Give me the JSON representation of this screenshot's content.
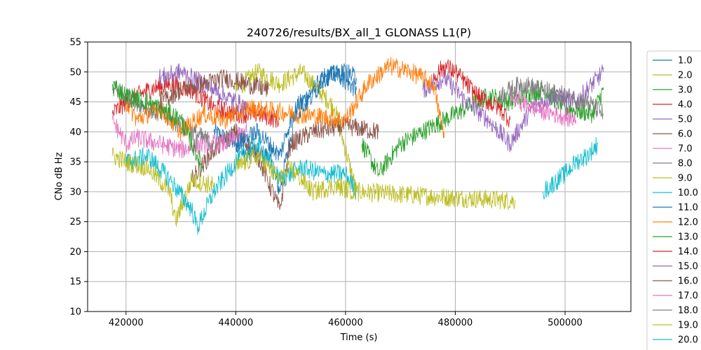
{
  "chart_data": {
    "type": "line",
    "title": "240726/results/BX_all_1 GLONASS L1(P)",
    "xlabel": "Time (s)",
    "ylabel": "CNo dB Hz",
    "xlim": [
      413000,
      512000
    ],
    "ylim": [
      10,
      55
    ],
    "xticks": [
      420000,
      440000,
      460000,
      480000,
      500000
    ],
    "xtick_labels": [
      "420000",
      "440000",
      "460000",
      "480000",
      "500000"
    ],
    "yticks": [
      10,
      15,
      20,
      25,
      30,
      35,
      40,
      45,
      50,
      55
    ],
    "ytick_labels": [
      "10",
      "15",
      "20",
      "25",
      "30",
      "35",
      "40",
      "45",
      "50",
      "55"
    ],
    "grid": true,
    "legend_position": "right, outside plot (clipped)",
    "series": [
      {
        "name": "1.0",
        "color": "#1f77b4",
        "x": [
          436000,
          442000,
          446000,
          448000,
          451000,
          455000,
          458000,
          462000
        ],
        "y": [
          40,
          37,
          36,
          30,
          44,
          48,
          50,
          47
        ]
      },
      {
        "name": "2.0",
        "color": "#bcbd22",
        "x": [
          440000,
          444000,
          448000,
          452000,
          458000,
          462000,
          480000,
          491000
        ],
        "y": [
          47,
          50,
          48,
          50,
          44,
          30,
          29,
          28.5
        ]
      },
      {
        "name": "3.0",
        "color": "#2ca02c",
        "x": [
          463000,
          466000,
          470000,
          474000,
          478000,
          482000,
          486000,
          490000,
          496000,
          500000,
          505000,
          507000
        ],
        "y": [
          38,
          33,
          38,
          40,
          42,
          44,
          46,
          45,
          47,
          44,
          43,
          47
        ]
      },
      {
        "name": "4.0",
        "color": "#d62728",
        "x": [
          417500,
          420000,
          424000,
          428000,
          432000,
          436000,
          440000,
          444000,
          448000
        ],
        "y": [
          43,
          45,
          47,
          48,
          47,
          44,
          43,
          43,
          42
        ]
      },
      {
        "name": "5.0",
        "color": "#9467bd",
        "x": [
          474000,
          478000,
          482000,
          486000,
          490000,
          494000,
          498000,
          502000,
          506000,
          507000
        ],
        "y": [
          47,
          49,
          45,
          42,
          38,
          44,
          46,
          45,
          49,
          50
        ]
      },
      {
        "name": "6.0",
        "color": "#8c564b",
        "x": [
          432000,
          436000,
          440000,
          444000,
          448000,
          450000,
          454000,
          460000,
          466000
        ],
        "y": [
          32,
          37,
          40,
          36,
          27,
          38,
          40,
          41,
          40
        ]
      },
      {
        "name": "7.0",
        "color": "#e377c2",
        "x": [
          417500,
          420000,
          422000,
          426000,
          430000,
          434000,
          438000,
          442000
        ],
        "y": [
          42,
          38,
          39,
          38,
          37,
          38,
          38,
          40
        ]
      },
      {
        "name": "8.0",
        "color": "#7f7f7f",
        "x": [
          417500,
          420000,
          424000,
          428000,
          432000,
          436000
        ],
        "y": [
          47,
          46,
          44,
          42,
          40,
          38
        ]
      },
      {
        "name": "9.0",
        "color": "#bcbd22",
        "x": [
          417500,
          420000,
          424000,
          428000,
          429000,
          432000,
          436000
        ],
        "y": [
          36,
          35,
          34,
          30,
          25,
          32,
          31
        ]
      },
      {
        "name": "10.0",
        "color": "#17becf",
        "x": [
          420000,
          424000,
          428000,
          432000,
          433000,
          436000,
          440000,
          444000,
          448000,
          452000,
          456000,
          460000,
          462000
        ],
        "y": [
          35,
          36,
          32,
          27,
          24,
          30,
          35,
          38,
          32,
          34,
          33,
          33,
          30
        ]
      },
      {
        "name": "11.0",
        "color": "#1f77b4",
        "x": [
          440000,
          444000,
          448000,
          450000,
          454000,
          456000,
          460000,
          462000
        ],
        "y": [
          38,
          40,
          36,
          42,
          46,
          49,
          50,
          49
        ]
      },
      {
        "name": "12.0",
        "color": "#ff7f0e",
        "x": [
          420000,
          422000,
          426000,
          430000,
          434000,
          438000,
          442000,
          460000,
          464000,
          468000,
          472000,
          476000,
          478000
        ],
        "y": [
          45,
          42,
          44,
          40,
          43,
          42,
          44,
          42,
          48,
          51,
          50,
          48,
          39
        ]
      },
      {
        "name": "13.0",
        "color": "#2ca02c",
        "x": [
          417500,
          420000,
          424000,
          426000,
          430000,
          434000
        ],
        "y": [
          48,
          46,
          45,
          44,
          42,
          34
        ]
      },
      {
        "name": "14.0",
        "color": "#d62728",
        "x": [
          476000,
          478000,
          480000,
          484000,
          488000,
          490000
        ],
        "y": [
          49,
          51,
          50,
          46,
          44,
          42
        ]
      },
      {
        "name": "15.0",
        "color": "#9467bd",
        "x": [
          426000,
          430000,
          434000,
          438000,
          442000
        ],
        "y": [
          49,
          50,
          48,
          46,
          44
        ]
      },
      {
        "name": "16.0",
        "color": "#8c564b",
        "x": [
          426000,
          430000,
          434000,
          438000,
          442000,
          446000
        ],
        "y": [
          45,
          47,
          48,
          49,
          48,
          47
        ]
      },
      {
        "name": "17.0",
        "color": "#e377c2",
        "x": [
          490000,
          494000,
          498000,
          502000
        ],
        "y": [
          46,
          44,
          43,
          42
        ]
      },
      {
        "name": "18.0",
        "color": "#7f7f7f",
        "x": [
          488000,
          492000,
          496000,
          500000,
          504000,
          507000
        ],
        "y": [
          46,
          48,
          47,
          46,
          45,
          43
        ]
      },
      {
        "name": "19.0",
        "color": "#bcbd22",
        "x": [
          440000,
          444000,
          448000,
          450000,
          454000,
          458000,
          462000
        ],
        "y": [
          34,
          36,
          32,
          34,
          30,
          31,
          30
        ]
      },
      {
        "name": "20.0",
        "color": "#17becf",
        "x": [
          496000,
          500000,
          502000,
          504000,
          506000
        ],
        "y": [
          30,
          33,
          35,
          36,
          38
        ]
      }
    ]
  }
}
